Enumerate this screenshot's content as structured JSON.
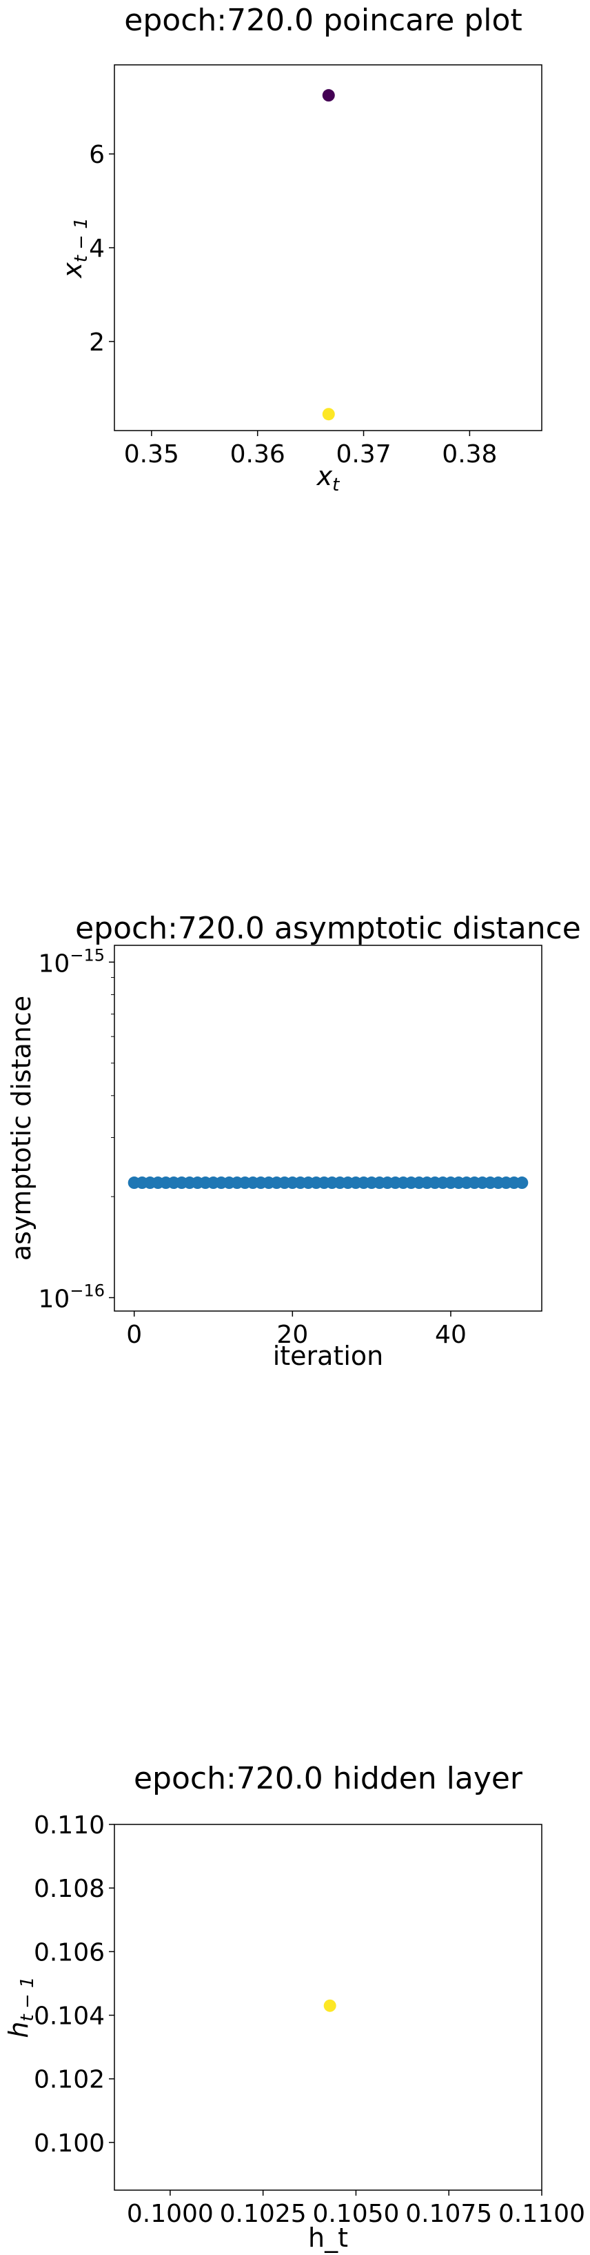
{
  "chart_data": [
    {
      "type": "scatter",
      "title": "epoch:720.0 poincare plot",
      "xlabel": {
        "base": "x",
        "sub": "t"
      },
      "ylabel": {
        "base": "x",
        "sub": "t − 1"
      },
      "xlim": [
        0.3465,
        0.3868
      ],
      "ylim": [
        0.1,
        7.9
      ],
      "xticks": [
        0.35,
        0.36,
        0.37,
        0.38
      ],
      "xtick_labels": [
        "0.35",
        "0.36",
        "0.37",
        "0.38"
      ],
      "yticks": [
        2,
        4,
        6
      ],
      "ytick_labels": [
        "2",
        "4",
        "6"
      ],
      "points": [
        {
          "x": 0.3667,
          "y": 7.25,
          "color": "#440154"
        },
        {
          "x": 0.3667,
          "y": 0.45,
          "color": "#fde725"
        }
      ]
    },
    {
      "type": "scatter",
      "title": "epoch:720.0 asymptotic distance",
      "xlabel": "iteration",
      "ylabel": "asymptotic distance",
      "yscale": "log",
      "xlim": [
        -2.5,
        51.5
      ],
      "ylim_log10": [
        -16.04,
        -14.95
      ],
      "xticks": [
        0,
        20,
        40
      ],
      "xtick_labels": [
        "0",
        "20",
        "40"
      ],
      "yticks_log10": [
        -16,
        -15
      ],
      "ytick_labels": [
        {
          "base": "10",
          "exp": "−16"
        },
        {
          "base": "10",
          "exp": "−15"
        }
      ],
      "series": [
        {
          "name": "asymptotic distance",
          "color": "#1f77b4",
          "x": [
            0,
            1,
            2,
            3,
            4,
            5,
            6,
            7,
            8,
            9,
            10,
            11,
            12,
            13,
            14,
            15,
            16,
            17,
            18,
            19,
            20,
            21,
            22,
            23,
            24,
            25,
            26,
            27,
            28,
            29,
            30,
            31,
            32,
            33,
            34,
            35,
            36,
            37,
            38,
            39,
            40,
            41,
            42,
            43,
            44,
            45,
            46,
            47,
            48,
            49
          ],
          "y": [
            2.2e-16,
            2.2e-16,
            2.2e-16,
            2.2e-16,
            2.2e-16,
            2.2e-16,
            2.2e-16,
            2.2e-16,
            2.2e-16,
            2.2e-16,
            2.2e-16,
            2.2e-16,
            2.2e-16,
            2.2e-16,
            2.2e-16,
            2.2e-16,
            2.2e-16,
            2.2e-16,
            2.2e-16,
            2.2e-16,
            2.2e-16,
            2.2e-16,
            2.2e-16,
            2.2e-16,
            2.2e-16,
            2.2e-16,
            2.2e-16,
            2.2e-16,
            2.2e-16,
            2.2e-16,
            2.2e-16,
            2.2e-16,
            2.2e-16,
            2.2e-16,
            2.2e-16,
            2.2e-16,
            2.2e-16,
            2.2e-16,
            2.2e-16,
            2.2e-16,
            2.2e-16,
            2.2e-16,
            2.2e-16,
            2.2e-16,
            2.2e-16,
            2.2e-16,
            2.2e-16,
            2.2e-16,
            2.2e-16,
            2.2e-16
          ]
        }
      ]
    },
    {
      "type": "scatter",
      "title": "epoch:720.0 hidden layer",
      "xlabel": "h_t",
      "ylabel": {
        "base": "h",
        "sub": "t − 1"
      },
      "xlim": [
        0.0985,
        0.11
      ],
      "ylim": [
        0.0985,
        0.11
      ],
      "xticks": [
        0.1,
        0.1025,
        0.105,
        0.1075,
        0.11
      ],
      "xtick_labels": [
        "0.1000",
        "0.1025",
        "0.1050",
        "0.1075",
        "0.1100"
      ],
      "yticks": [
        0.1,
        0.102,
        0.104,
        0.106,
        0.108,
        0.11
      ],
      "ytick_labels": [
        "0.100",
        "0.102",
        "0.104",
        "0.106",
        "0.108",
        "0.110"
      ],
      "points": [
        {
          "x": 0.1043,
          "y": 0.1043,
          "color": "#fde725"
        }
      ]
    }
  ]
}
